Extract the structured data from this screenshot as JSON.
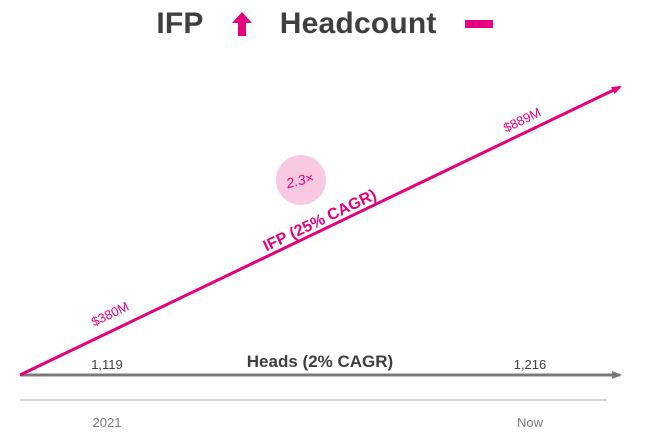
{
  "title": {
    "left_text": "IFP",
    "right_text": "Headcount",
    "up_arrow_icon": "arrow-up-icon",
    "minus_icon": "minus-icon"
  },
  "colors": {
    "accent": "#e6007e",
    "bubble": "#f9c9e3",
    "heads_line": "#7a7a7a",
    "axis": "#c8c8c8",
    "text_dark": "#3f3f3f",
    "text_gray": "#7b7b7b"
  },
  "chart_data": {
    "type": "line",
    "x": [
      "2021",
      "Now"
    ],
    "series": [
      {
        "name": "IFP (25% CAGR)",
        "values": [
          380,
          889
        ],
        "value_labels": [
          "$380M",
          "$889M"
        ],
        "multiplier_badge": "2.3×"
      },
      {
        "name": "Heads (2% CAGR)",
        "values": [
          1119,
          1216
        ],
        "value_labels": [
          "1,119",
          "1,216"
        ]
      }
    ],
    "x_tick_labels": [
      "2021",
      "Now"
    ],
    "xlabel": "",
    "ylabel": "",
    "grid": false,
    "legend": "none"
  }
}
